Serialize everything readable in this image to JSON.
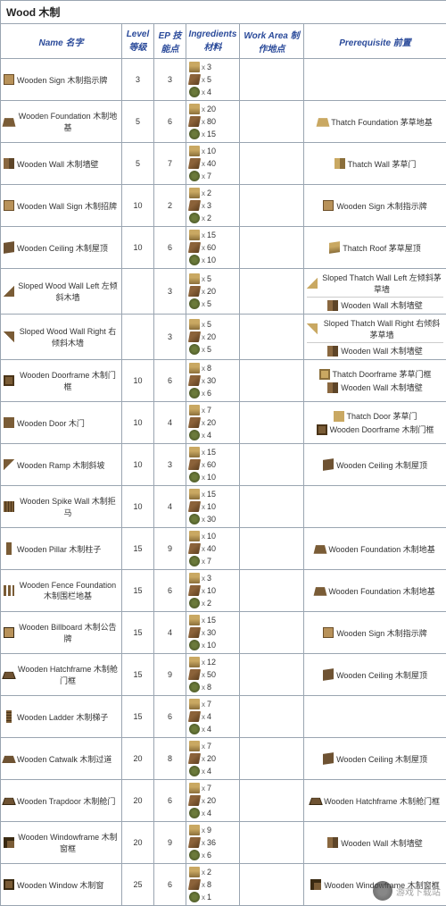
{
  "title": "Wood 木制",
  "headers": {
    "name": "Name 名字",
    "level": "Level 等级",
    "ep": "EP 技能点",
    "ingredients": "Ingredients 材料",
    "workarea": "Work Area 制作地点",
    "prereq": "Prerequisite 前置"
  },
  "x": "x",
  "watermark": "游戏下载站",
  "rows": [
    {
      "icon": "icon-sign",
      "name": "Wooden Sign 木制指示牌",
      "level": "3",
      "ep": "3",
      "ing": [
        {
          "i": "icon-thatch",
          "q": "3"
        },
        {
          "i": "icon-wood",
          "q": "5"
        },
        {
          "i": "icon-fiber",
          "q": "4"
        }
      ],
      "prereq": []
    },
    {
      "icon": "icon-foundation",
      "name": "Wooden Foundation 木制地基",
      "level": "5",
      "ep": "6",
      "ing": [
        {
          "i": "icon-thatch",
          "q": "20"
        },
        {
          "i": "icon-wood",
          "q": "80"
        },
        {
          "i": "icon-fiber",
          "q": "15"
        }
      ],
      "prereq": [
        {
          "i": "icon-thatchfoundation",
          "t": "Thatch Foundation 茅草地基"
        }
      ]
    },
    {
      "icon": "icon-wall",
      "name": "Wooden Wall 木制墙壁",
      "level": "5",
      "ep": "7",
      "ing": [
        {
          "i": "icon-thatch",
          "q": "10"
        },
        {
          "i": "icon-wood",
          "q": "40"
        },
        {
          "i": "icon-fiber",
          "q": "7"
        }
      ],
      "prereq": [
        {
          "i": "icon-thatchwall",
          "t": "Thatch Wall 茅草门"
        }
      ]
    },
    {
      "icon": "icon-sign",
      "name": "Wooden Wall Sign 木制招牌",
      "level": "10",
      "ep": "2",
      "ing": [
        {
          "i": "icon-thatch",
          "q": "2"
        },
        {
          "i": "icon-wood",
          "q": "3"
        },
        {
          "i": "icon-fiber",
          "q": "2"
        }
      ],
      "prereq": [
        {
          "i": "icon-sign",
          "t": "Wooden Sign 木制指示牌"
        }
      ]
    },
    {
      "icon": "icon-ceiling",
      "name": "Wooden Ceiling 木制屋顶",
      "level": "10",
      "ep": "6",
      "ing": [
        {
          "i": "icon-thatch",
          "q": "15"
        },
        {
          "i": "icon-wood",
          "q": "60"
        },
        {
          "i": "icon-fiber",
          "q": "10"
        }
      ],
      "prereq": [
        {
          "i": "icon-thatchroof",
          "t": "Thatch Roof 茅草屋顶"
        }
      ]
    },
    {
      "icon": "icon-slopeL",
      "name": "Sloped Wood Wall Left 左倾斜木墙",
      "level": "",
      "ep": "3",
      "ing": [
        {
          "i": "icon-thatch",
          "q": "5"
        },
        {
          "i": "icon-wood",
          "q": "20"
        },
        {
          "i": "icon-fiber",
          "q": "5"
        }
      ],
      "prereq": [
        {
          "i": "icon-thatchslopeL",
          "t": "Sloped Thatch Wall Left 左倾斜茅草墙"
        },
        {
          "hr": true
        },
        {
          "i": "icon-wall",
          "t": "Wooden Wall 木制墙壁"
        }
      ]
    },
    {
      "icon": "icon-slopeR",
      "name": "Sloped Wood Wall Right 右倾斜木墙",
      "level": "",
      "ep": "3",
      "ing": [
        {
          "i": "icon-thatch",
          "q": "5"
        },
        {
          "i": "icon-wood",
          "q": "20"
        },
        {
          "i": "icon-fiber",
          "q": "5"
        }
      ],
      "prereq": [
        {
          "i": "icon-thatchslopeR",
          "t": "Sloped Thatch Wall Right 右倾斜茅草墙"
        },
        {
          "hr": true
        },
        {
          "i": "icon-wall",
          "t": "Wooden Wall 木制墙壁"
        }
      ]
    },
    {
      "icon": "icon-frame",
      "name": "Wooden Doorframe 木制门框",
      "level": "10",
      "ep": "6",
      "ing": [
        {
          "i": "icon-thatch",
          "q": "8"
        },
        {
          "i": "icon-wood",
          "q": "30"
        },
        {
          "i": "icon-fiber",
          "q": "6"
        }
      ],
      "prereq": [
        {
          "i": "icon-thatchframe",
          "t": "Thatch Doorframe 茅草门框"
        },
        {
          "i": "icon-wall",
          "t": "Wooden Wall 木制墙壁"
        }
      ]
    },
    {
      "icon": "icon-door",
      "name": "Wooden Door 木门",
      "level": "10",
      "ep": "4",
      "ing": [
        {
          "i": "icon-thatch",
          "q": "7"
        },
        {
          "i": "icon-wood",
          "q": "20"
        },
        {
          "i": "icon-fiber",
          "q": "4"
        }
      ],
      "prereq": [
        {
          "i": "icon-thatchdoor",
          "t": "Thatch Door  茅草门"
        },
        {
          "i": "icon-frame",
          "t": "Wooden Doorframe 木制门框"
        }
      ]
    },
    {
      "icon": "icon-ramp",
      "name": "Wooden Ramp 木制斜坡",
      "level": "10",
      "ep": "3",
      "ing": [
        {
          "i": "icon-thatch",
          "q": "15"
        },
        {
          "i": "icon-wood",
          "q": "60"
        },
        {
          "i": "icon-fiber",
          "q": "10"
        }
      ],
      "prereq": [
        {
          "i": "icon-ceiling",
          "t": "Wooden Ceiling  木制屋顶"
        }
      ]
    },
    {
      "icon": "icon-spike",
      "name": "Wooden Spike Wall 木制拒马",
      "level": "10",
      "ep": "4",
      "ing": [
        {
          "i": "icon-thatch",
          "q": "15"
        },
        {
          "i": "icon-wood",
          "q": "10"
        },
        {
          "i": "icon-fiber",
          "q": "30"
        }
      ],
      "prereq": []
    },
    {
      "icon": "icon-pillar",
      "name": "Wooden Pillar 木制柱子",
      "level": "15",
      "ep": "9",
      "ing": [
        {
          "i": "icon-thatch",
          "q": "10"
        },
        {
          "i": "icon-wood",
          "q": "40"
        },
        {
          "i": "icon-fiber",
          "q": "7"
        }
      ],
      "prereq": [
        {
          "i": "icon-foundation",
          "t": "Wooden Foundation 木制地基"
        }
      ]
    },
    {
      "icon": "icon-fence",
      "name": "Wooden Fence Foundation 木制围栏地基",
      "level": "15",
      "ep": "6",
      "ing": [
        {
          "i": "icon-thatch",
          "q": "3"
        },
        {
          "i": "icon-wood",
          "q": "10"
        },
        {
          "i": "icon-fiber",
          "q": "2"
        }
      ],
      "prereq": [
        {
          "i": "icon-foundation",
          "t": "Wooden Foundation 木制地基"
        }
      ]
    },
    {
      "icon": "icon-billboard",
      "name": "Wooden Billboard 木制公告牌",
      "level": "15",
      "ep": "4",
      "ing": [
        {
          "i": "icon-thatch",
          "q": "15"
        },
        {
          "i": "icon-wood",
          "q": "30"
        },
        {
          "i": "icon-fiber",
          "q": "10"
        }
      ],
      "prereq": [
        {
          "i": "icon-sign",
          "t": "Wooden Sign 木制指示牌"
        }
      ]
    },
    {
      "icon": "icon-hatch",
      "name": "Wooden Hatchframe 木制舱门框",
      "level": "15",
      "ep": "9",
      "ing": [
        {
          "i": "icon-thatch",
          "q": "12"
        },
        {
          "i": "icon-wood",
          "q": "50"
        },
        {
          "i": "icon-fiber",
          "q": "8"
        }
      ],
      "prereq": [
        {
          "i": "icon-ceiling",
          "t": "Wooden Ceiling 木制屋顶"
        }
      ]
    },
    {
      "icon": "icon-ladder",
      "name": "Wooden Ladder 木制梯子",
      "level": "15",
      "ep": "6",
      "ing": [
        {
          "i": "icon-thatch",
          "q": "7"
        },
        {
          "i": "icon-wood",
          "q": "4"
        },
        {
          "i": "icon-fiber",
          "q": "4"
        }
      ],
      "prereq": []
    },
    {
      "icon": "icon-catwalk",
      "name": "Wooden Catwalk 木制过道",
      "level": "20",
      "ep": "8",
      "ing": [
        {
          "i": "icon-thatch",
          "q": "7"
        },
        {
          "i": "icon-wood",
          "q": "20"
        },
        {
          "i": "icon-fiber",
          "q": "4"
        }
      ],
      "prereq": [
        {
          "i": "icon-ceiling",
          "t": "Wooden Ceiling 木制屋顶"
        }
      ]
    },
    {
      "icon": "icon-trapdoor",
      "name": "Wooden Trapdoor 木制舱门",
      "level": "20",
      "ep": "6",
      "ing": [
        {
          "i": "icon-thatch",
          "q": "7"
        },
        {
          "i": "icon-wood",
          "q": "20"
        },
        {
          "i": "icon-fiber",
          "q": "4"
        }
      ],
      "prereq": [
        {
          "i": "icon-hatch",
          "t": "Wooden Hatchframe 木制舱门框"
        }
      ]
    },
    {
      "icon": "icon-windowframe",
      "name": "Wooden Windowframe 木制窗框",
      "level": "20",
      "ep": "9",
      "ing": [
        {
          "i": "icon-thatch",
          "q": "9"
        },
        {
          "i": "icon-wood",
          "q": "36"
        },
        {
          "i": "icon-fiber",
          "q": "6"
        }
      ],
      "prereq": [
        {
          "i": "icon-wall",
          "t": "Wooden Wall 木制墙壁"
        }
      ]
    },
    {
      "icon": "icon-window",
      "name": "Wooden Window 木制窗",
      "level": "25",
      "ep": "6",
      "ing": [
        {
          "i": "icon-thatch",
          "q": "2"
        },
        {
          "i": "icon-wood",
          "q": "8"
        },
        {
          "i": "icon-fiber",
          "q": "1"
        }
      ],
      "prereq": [
        {
          "i": "icon-windowframe",
          "t": "Wooden Windowframe 木制窗框"
        }
      ]
    }
  ]
}
